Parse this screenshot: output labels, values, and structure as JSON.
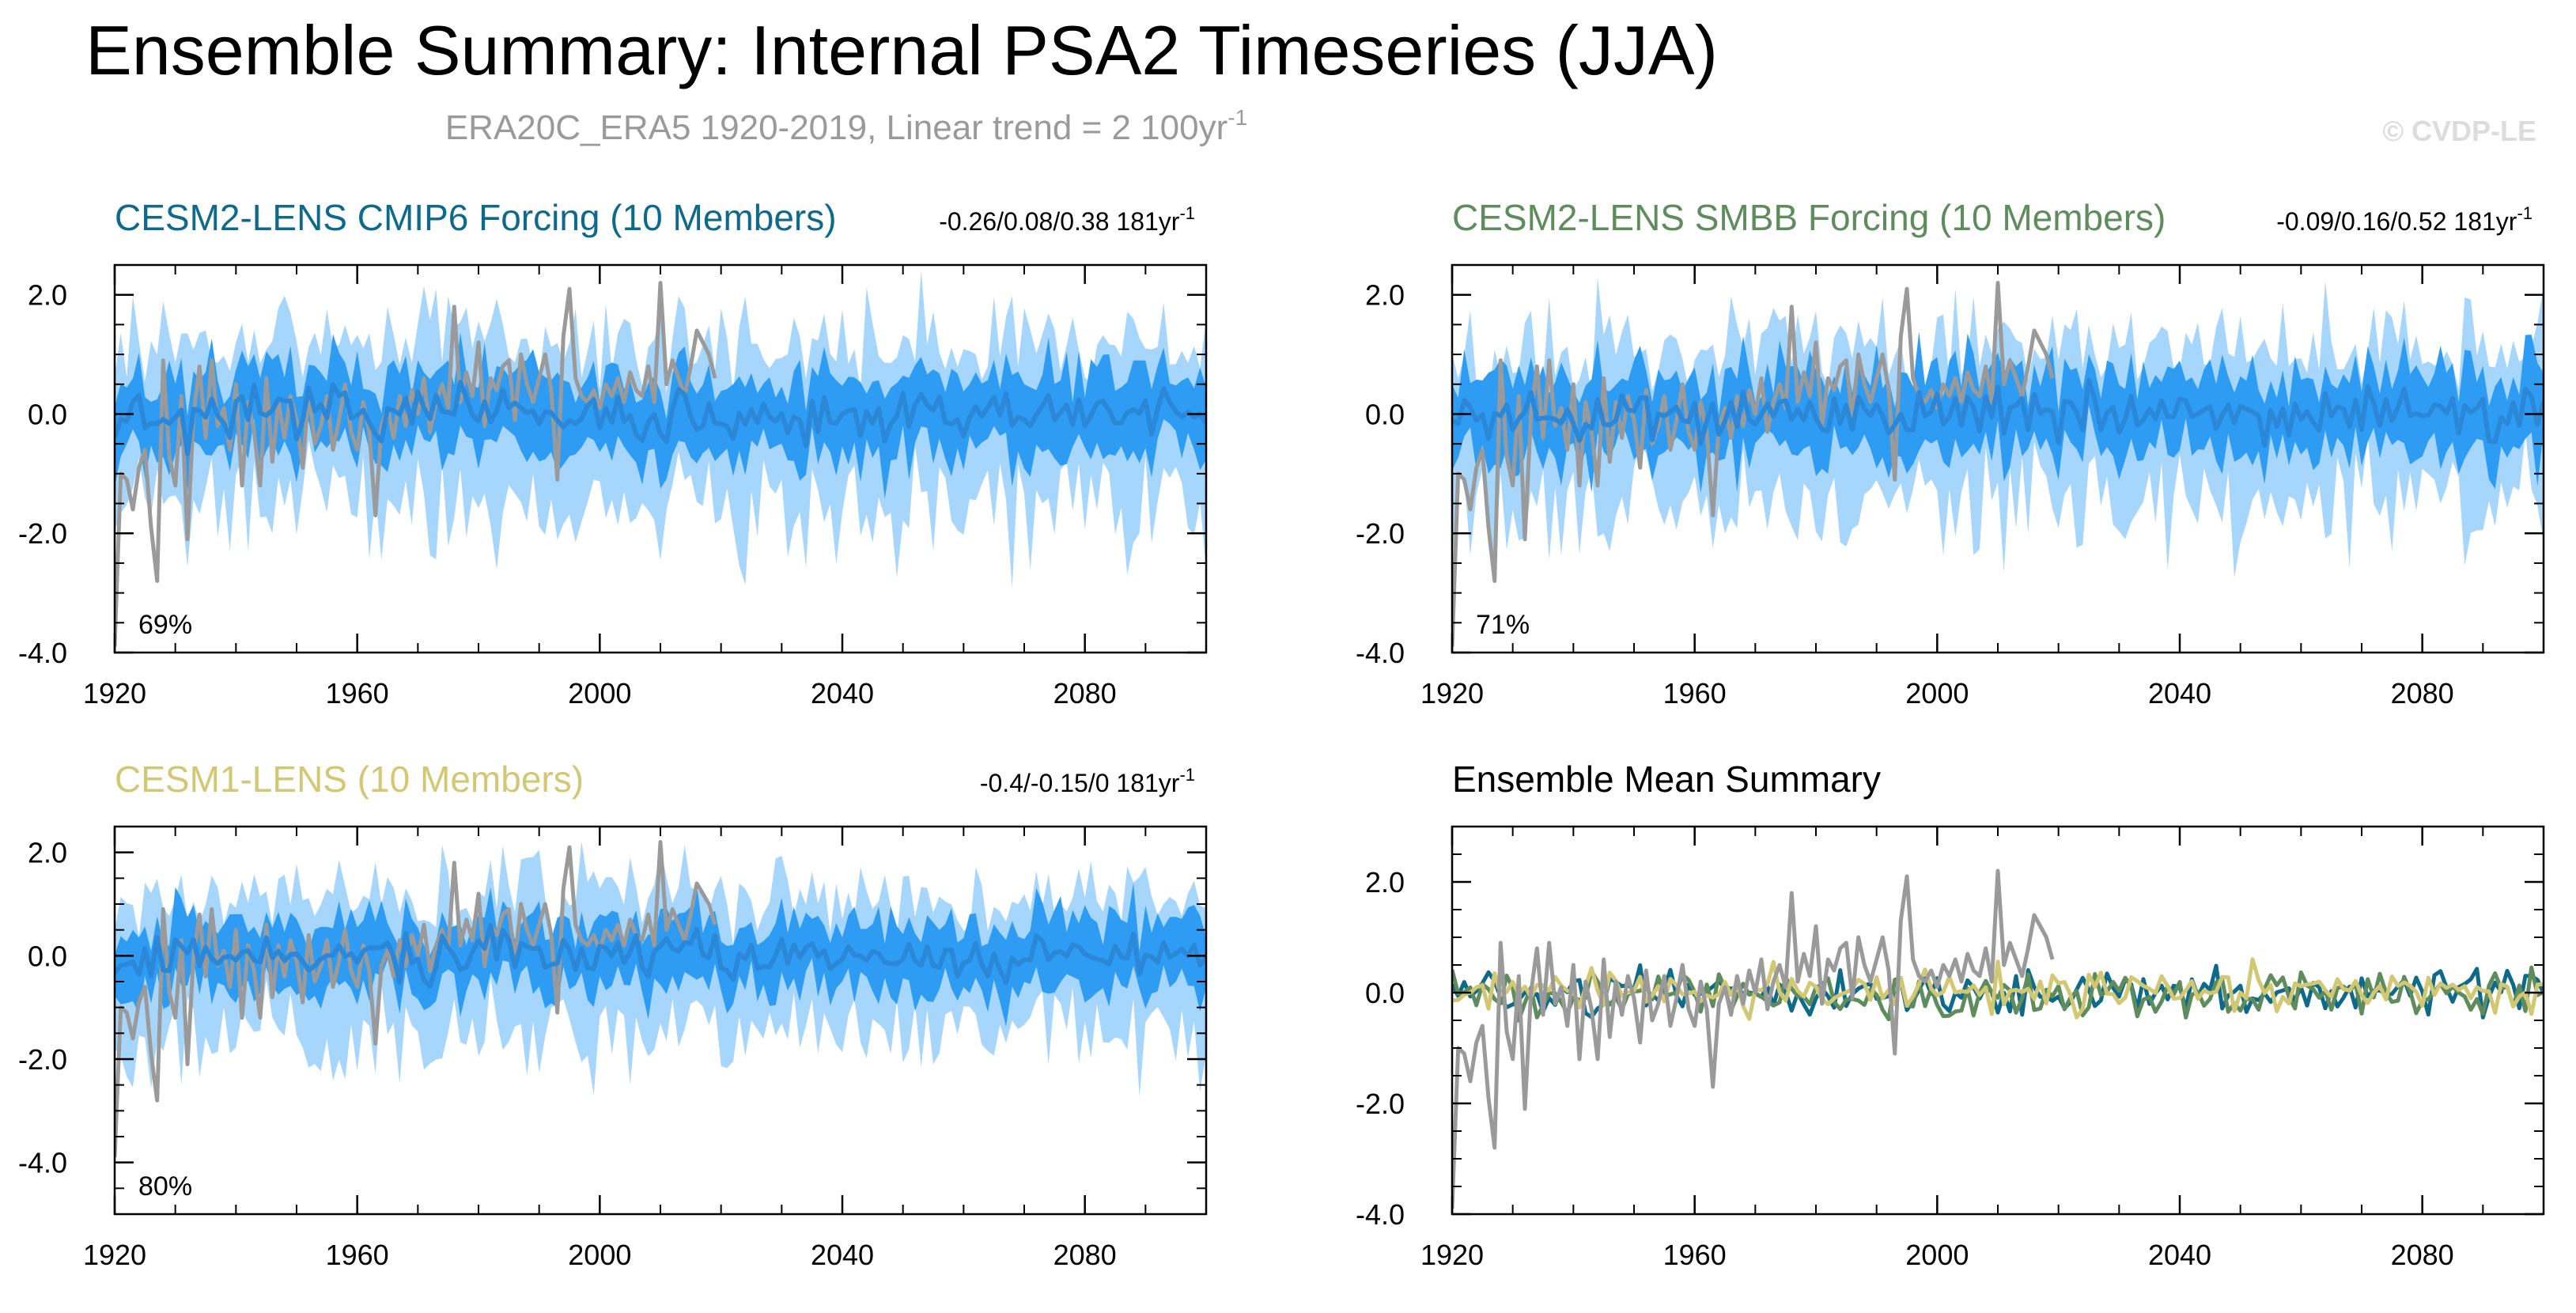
{
  "title": "Ensemble Summary: Internal PSA2 Timeseries (JJA)",
  "subtitle": "ERA20C_ERA5 1920-2019, Linear trend = 2 100yr",
  "subtitle_sup": "-1",
  "credit": "© CVDP-LE",
  "colors": {
    "cesm2_cmip6": "#0e6a8a",
    "cesm2_smbb": "#5e8c5c",
    "cesm1": "#d2c873",
    "obs": "#9a9a9a",
    "band_outer": "#a6d6fb",
    "band_inner": "#2e9cf2",
    "ens_mean": "#2b88d9"
  },
  "chart_data": [
    {
      "type": "area",
      "name": "cesm2-cmip6",
      "title": "CESM2-LENS CMIP6 Forcing (10 Members)",
      "stat_text": "-0.26/0.08/0.38 181yr",
      "stat_sup": "-1",
      "percent_label": "69%",
      "xlim": [
        1920,
        2100
      ],
      "ylim": [
        -4.0,
        2.5
      ],
      "xticks": [
        1920,
        1960,
        2000,
        2040,
        2080
      ],
      "xtick_labels": [
        "1920",
        "1960",
        "2000",
        "2040",
        "2080"
      ],
      "yticks": [
        2.0,
        0.0,
        -2.0,
        -4.0
      ],
      "ytick_labels": [
        "2.0",
        "0.0",
        "-2.0",
        "-4.0"
      ],
      "seed": 11,
      "obs_series": "ERA20C_ERA5 1920-2019",
      "bands": [
        "min-max",
        "25-75th percentile",
        "ensemble mean"
      ]
    },
    {
      "type": "area",
      "name": "cesm2-smbb",
      "title": "CESM2-LENS SMBB Forcing (10 Members)",
      "stat_text": "-0.09/0.16/0.52 181yr",
      "stat_sup": "-1",
      "percent_label": "71%",
      "xlim": [
        1920,
        2100
      ],
      "ylim": [
        -4.0,
        2.5
      ],
      "xticks": [
        1920,
        1960,
        2000,
        2040,
        2080
      ],
      "xtick_labels": [
        "1920",
        "1960",
        "2000",
        "2040",
        "2080"
      ],
      "yticks": [
        2.0,
        0.0,
        -2.0,
        -4.0
      ],
      "ytick_labels": [
        "2.0",
        "0.0",
        "-2.0",
        "-4.0"
      ],
      "seed": 23,
      "obs_series": "ERA20C_ERA5 1920-2019",
      "bands": [
        "min-max",
        "25-75th percentile",
        "ensemble mean"
      ]
    },
    {
      "type": "area",
      "name": "cesm1",
      "title": "CESM1-LENS (10 Members)",
      "stat_text": "-0.4/-0.15/0 181yr",
      "stat_sup": "-1",
      "percent_label": "80%",
      "xlim": [
        1920,
        2100
      ],
      "ylim": [
        -5.0,
        2.5
      ],
      "xticks": [
        1920,
        1960,
        2000,
        2040,
        2080
      ],
      "xtick_labels": [
        "1920",
        "1960",
        "2000",
        "2040",
        "2080"
      ],
      "yticks": [
        2.0,
        0.0,
        -2.0,
        -4.0
      ],
      "ytick_labels": [
        "2.0",
        "0.0",
        "-2.0",
        "-4.0"
      ],
      "seed": 37,
      "obs_series": "ERA20C_ERA5 1920-2019",
      "bands": [
        "min-max",
        "25-75th percentile",
        "ensemble mean"
      ]
    },
    {
      "type": "line",
      "name": "ensemble-mean-summary",
      "title": "Ensemble Mean Summary",
      "xlim": [
        1920,
        2100
      ],
      "ylim": [
        -4.0,
        3.0
      ],
      "xticks": [
        1920,
        1960,
        2000,
        2040,
        2080
      ],
      "xtick_labels": [
        "1920",
        "1960",
        "2000",
        "2040",
        "2080"
      ],
      "yticks": [
        2.0,
        0.0,
        -2.0,
        -4.0
      ],
      "ytick_labels": [
        "2.0",
        "0.0",
        "-2.0",
        "-4.0"
      ],
      "series": [
        {
          "name": "CESM2-LENS CMIP6 Forcing",
          "color_key": "cesm2_cmip6",
          "seed": 51
        },
        {
          "name": "CESM2-LENS SMBB Forcing",
          "color_key": "cesm2_smbb",
          "seed": 63
        },
        {
          "name": "CESM1-LENS",
          "color_key": "cesm1",
          "seed": 77
        },
        {
          "name": "ERA20C_ERA5",
          "color_key": "obs",
          "seed": 0
        }
      ]
    }
  ],
  "obs": {
    "years": [
      1920,
      2019
    ],
    "keypoints": [
      [
        1920,
        -3.9
      ],
      [
        1921,
        -1.0
      ],
      [
        1922,
        -1.1
      ],
      [
        1923,
        -1.6
      ],
      [
        1924,
        -0.9
      ],
      [
        1925,
        -0.6
      ],
      [
        1926,
        -1.9
      ],
      [
        1927,
        -2.8
      ],
      [
        1928,
        0.9
      ],
      [
        1929,
        -0.7
      ],
      [
        1930,
        -1.2
      ],
      [
        1931,
        0.3
      ],
      [
        1932,
        -2.1
      ],
      [
        1933,
        0.0
      ],
      [
        1934,
        0.8
      ],
      [
        1935,
        -0.4
      ],
      [
        1936,
        0.9
      ],
      [
        1937,
        -0.2
      ],
      [
        1938,
        0.1
      ],
      [
        1939,
        -0.6
      ],
      [
        1940,
        0.5
      ],
      [
        1941,
        -1.2
      ],
      [
        1942,
        0.2
      ],
      [
        1943,
        -0.3
      ],
      [
        1944,
        -1.2
      ],
      [
        1945,
        0.6
      ],
      [
        1946,
        -0.8
      ],
      [
        1947,
        0.2
      ],
      [
        1948,
        -0.4
      ],
      [
        1949,
        0.3
      ],
      [
        1950,
        -0.1
      ],
      [
        1951,
        -0.9
      ],
      [
        1952,
        0.4
      ],
      [
        1953,
        -0.5
      ],
      [
        1954,
        -0.2
      ],
      [
        1955,
        0.3
      ],
      [
        1956,
        -0.6
      ],
      [
        1957,
        -0.1
      ],
      [
        1958,
        0.5
      ],
      [
        1959,
        -0.3
      ],
      [
        1960,
        -0.6
      ],
      [
        1961,
        0.2
      ],
      [
        1962,
        -0.3
      ],
      [
        1963,
        -1.7
      ],
      [
        1964,
        -0.2
      ],
      [
        1965,
        0.1
      ],
      [
        1966,
        -0.4
      ],
      [
        1967,
        0.3
      ],
      [
        1968,
        -0.2
      ],
      [
        1969,
        0.4
      ],
      [
        1970,
        0.0
      ],
      [
        1971,
        0.6
      ],
      [
        1972,
        -0.3
      ],
      [
        1973,
        0.2
      ],
      [
        1974,
        0.5
      ],
      [
        1975,
        0.1
      ],
      [
        1976,
        1.8
      ],
      [
        1977,
        0.2
      ],
      [
        1978,
        0.7
      ],
      [
        1979,
        0.3
      ],
      [
        1980,
        1.2
      ],
      [
        1981,
        -0.2
      ],
      [
        1982,
        0.6
      ],
      [
        1983,
        0.4
      ],
      [
        1984,
        0.8
      ],
      [
        1985,
        0.9
      ],
      [
        1986,
        -0.1
      ],
      [
        1987,
        1.0
      ],
      [
        1988,
        0.5
      ],
      [
        1989,
        0.2
      ],
      [
        1990,
        0.6
      ],
      [
        1991,
        1.0
      ],
      [
        1992,
        0.4
      ],
      [
        1993,
        -1.1
      ],
      [
        1994,
        1.3
      ],
      [
        1995,
        2.1
      ],
      [
        1996,
        0.6
      ],
      [
        1997,
        0.3
      ],
      [
        1998,
        0.2
      ],
      [
        1999,
        0.4
      ],
      [
        2000,
        0.1
      ],
      [
        2001,
        0.5
      ],
      [
        2002,
        0.3
      ],
      [
        2003,
        0.6
      ],
      [
        2004,
        0.2
      ],
      [
        2005,
        0.7
      ],
      [
        2006,
        0.4
      ],
      [
        2007,
        0.3
      ],
      [
        2008,
        0.8
      ],
      [
        2009,
        0.2
      ],
      [
        2010,
        2.2
      ],
      [
        2011,
        0.5
      ],
      [
        2012,
        0.9
      ],
      [
        2013,
        0.6
      ],
      [
        2014,
        0.3
      ],
      [
        2015,
        0.8
      ],
      [
        2016,
        1.4
      ],
      [
        2017,
        1.2
      ],
      [
        2018,
        1.0
      ],
      [
        2019,
        0.6
      ]
    ]
  }
}
